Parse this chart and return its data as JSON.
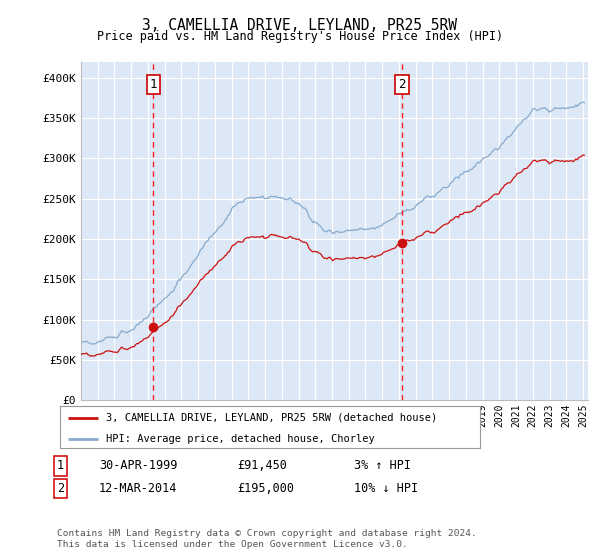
{
  "title": "3, CAMELLIA DRIVE, LEYLAND, PR25 5RW",
  "subtitle": "Price paid vs. HM Land Registry's House Price Index (HPI)",
  "ylim": [
    0,
    420000
  ],
  "yticks": [
    0,
    50000,
    100000,
    150000,
    200000,
    250000,
    300000,
    350000,
    400000
  ],
  "ytick_labels": [
    "£0",
    "£50K",
    "£100K",
    "£150K",
    "£200K",
    "£250K",
    "£300K",
    "£350K",
    "£400K"
  ],
  "plot_bg_color": "#dce8f5",
  "grid_color": "#ffffff",
  "line_red": "#cc1111",
  "line_blue": "#88aacc",
  "sale1_year": 1999.33,
  "sale1_price": 91450,
  "sale2_year": 2014.19,
  "sale2_price": 195000,
  "legend_label1": "3, CAMELLIA DRIVE, LEYLAND, PR25 5RW (detached house)",
  "legend_label2": "HPI: Average price, detached house, Chorley",
  "ann1_date": "30-APR-1999",
  "ann1_price": "£91,450",
  "ann1_hpi": "3% ↑ HPI",
  "ann2_date": "12-MAR-2014",
  "ann2_price": "£195,000",
  "ann2_hpi": "10% ↓ HPI",
  "footer": "Contains HM Land Registry data © Crown copyright and database right 2024.\nThis data is licensed under the Open Government Licence v3.0."
}
